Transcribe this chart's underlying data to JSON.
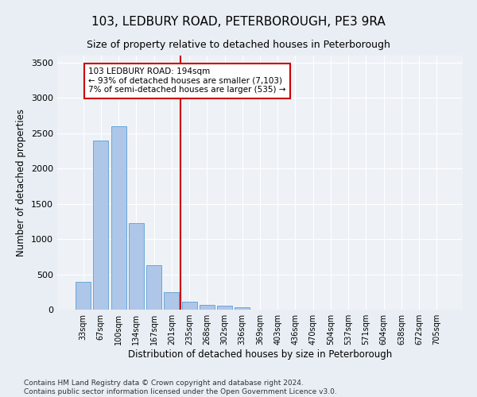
{
  "title": "103, LEDBURY ROAD, PETERBOROUGH, PE3 9RA",
  "subtitle": "Size of property relative to detached houses in Peterborough",
  "xlabel": "Distribution of detached houses by size in Peterborough",
  "ylabel": "Number of detached properties",
  "categories": [
    "33sqm",
    "67sqm",
    "100sqm",
    "134sqm",
    "167sqm",
    "201sqm",
    "235sqm",
    "268sqm",
    "302sqm",
    "336sqm",
    "369sqm",
    "403sqm",
    "436sqm",
    "470sqm",
    "504sqm",
    "537sqm",
    "571sqm",
    "604sqm",
    "638sqm",
    "672sqm",
    "705sqm"
  ],
  "values": [
    390,
    2400,
    2600,
    1230,
    630,
    250,
    110,
    65,
    55,
    35,
    0,
    0,
    0,
    0,
    0,
    0,
    0,
    0,
    0,
    0,
    0
  ],
  "bar_color": "#aec6e8",
  "bar_edge_color": "#5a9fd4",
  "vline_x": 5.5,
  "vline_color": "#cc0000",
  "annotation_text": "103 LEDBURY ROAD: 194sqm\n← 93% of detached houses are smaller (7,103)\n7% of semi-detached houses are larger (535) →",
  "annotation_box_color": "#ffffff",
  "annotation_box_edge_color": "#cc0000",
  "ylim": [
    0,
    3600
  ],
  "yticks": [
    0,
    500,
    1000,
    1500,
    2000,
    2500,
    3000,
    3500
  ],
  "bg_color": "#e8eef4",
  "plot_bg_color": "#eef2f7",
  "footer": "Contains HM Land Registry data © Crown copyright and database right 2024.\nContains public sector information licensed under the Open Government Licence v3.0.",
  "title_fontsize": 11,
  "subtitle_fontsize": 9,
  "xlabel_fontsize": 8.5,
  "ylabel_fontsize": 8.5,
  "footer_fontsize": 6.5
}
